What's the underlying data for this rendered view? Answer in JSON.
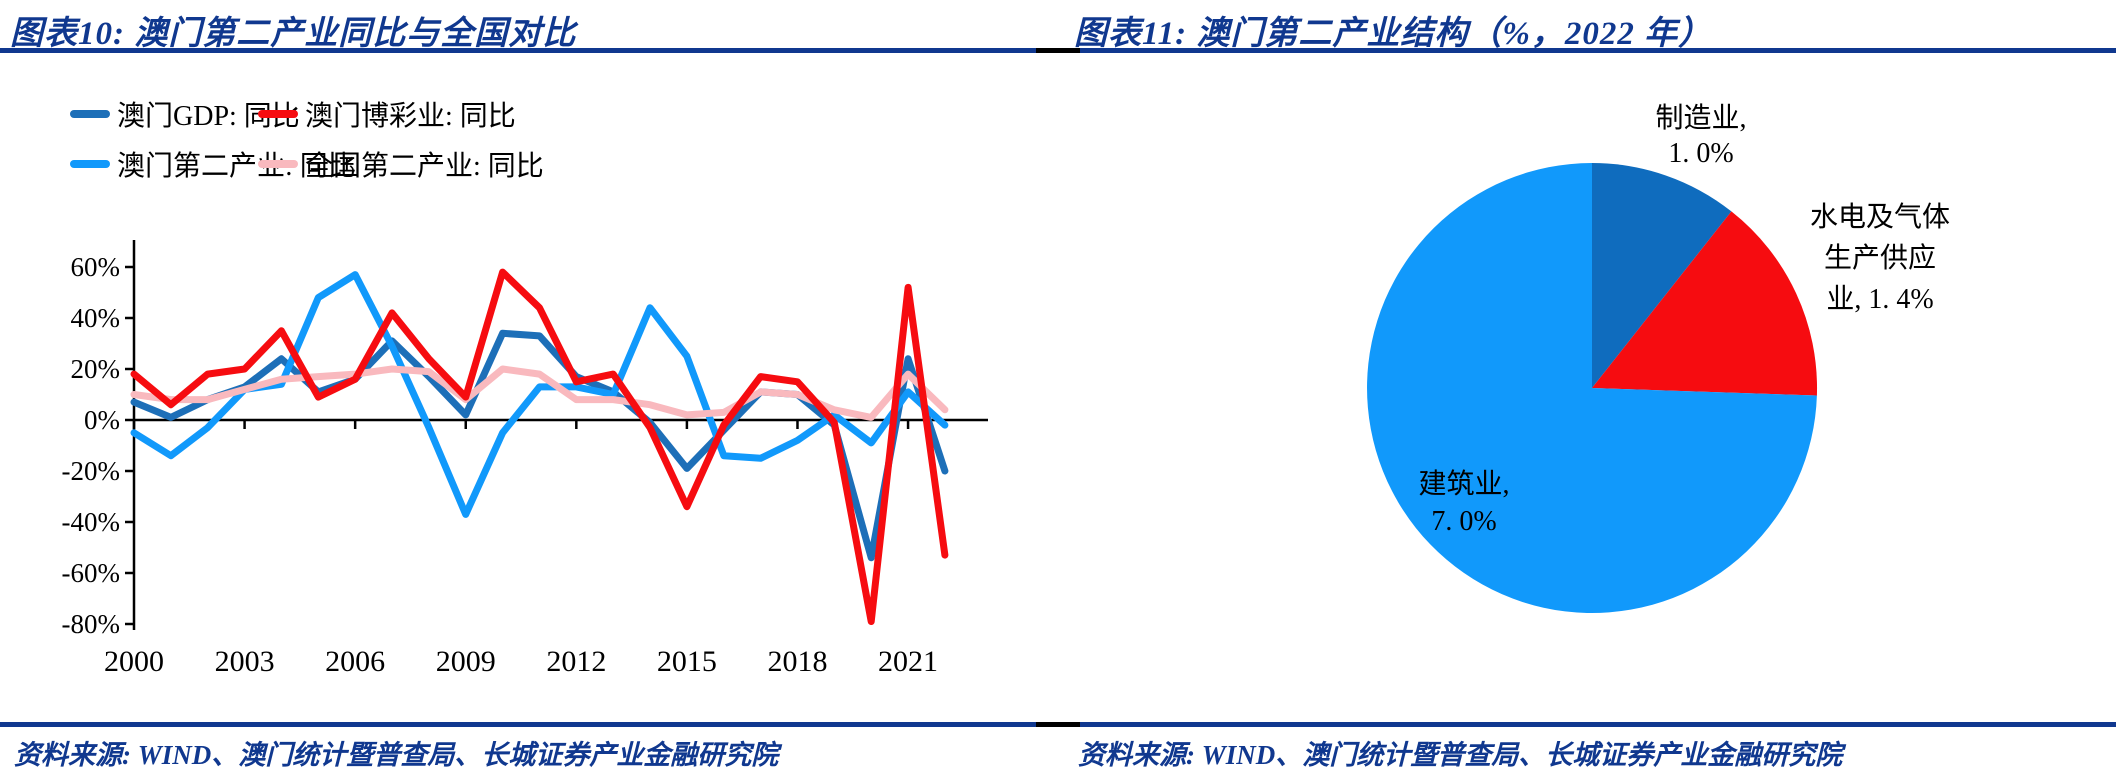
{
  "colors": {
    "accent_blue": "#10388f",
    "axis_black": "#000000",
    "macau_gdp_blue": "#1d6fb8",
    "gaming_red": "#f60c10",
    "macau_secondary_lightblue": "#1199fb",
    "national_secondary_pink": "#f9b9be",
    "pie_dark_blue": "#0f6cbe"
  },
  "left_panel": {
    "title": "图表10:  澳门第二产业同比与全国对比",
    "source": "资料来源: WIND、澳门统计暨普查局、长城证券产业金融研究院"
  },
  "right_panel": {
    "title": "图表11:  澳门第二产业结构（%，2022 年）",
    "source": "资料来源: WIND、澳门统计暨普查局、长城证券产业金融研究院"
  },
  "chart_data": [
    {
      "type": "line",
      "title": "澳门第二产业同比与全国对比",
      "xlabel": "",
      "ylabel": "",
      "grid": false,
      "legend_position": "top",
      "ylim": [
        -88,
        71
      ],
      "y_axis_ticks": [
        60,
        40,
        20,
        0,
        -20,
        -40,
        -60,
        -80
      ],
      "y_tick_suffix": "%",
      "x_tick_years": [
        2000,
        2003,
        2006,
        2009,
        2012,
        2015,
        2018,
        2021
      ],
      "x": [
        2000,
        2001,
        2002,
        2003,
        2004,
        2005,
        2006,
        2007,
        2008,
        2009,
        2010,
        2011,
        2012,
        2013,
        2014,
        2015,
        2016,
        2017,
        2018,
        2019,
        2020,
        2021,
        2022
      ],
      "draw_order": [
        0,
        2,
        3,
        1
      ],
      "series": [
        {
          "name": "澳门GDP: 同比",
          "color": "#1d6fb8",
          "values": [
            7,
            1,
            8,
            13,
            24,
            11,
            16,
            31,
            17,
            2,
            34,
            33,
            17,
            11,
            -1,
            -19,
            -4,
            11,
            10,
            -2,
            -54,
            24,
            -20
          ]
        },
        {
          "name": "澳门博彩业: 同比",
          "color": "#f60c10",
          "values": [
            18,
            6,
            18,
            20,
            35,
            9,
            16,
            42,
            24,
            9,
            58,
            44,
            15,
            18,
            -3,
            -34,
            -2,
            17,
            15,
            -1,
            -79,
            52,
            -53
          ]
        },
        {
          "name": "澳门第二产业: 同比",
          "color": "#1199fb",
          "values": [
            -5,
            -14,
            -3,
            12,
            14,
            48,
            57,
            29,
            -3,
            -37,
            -5,
            13,
            13,
            10,
            44,
            25,
            -14,
            -15,
            -8,
            2,
            -9,
            11,
            -2
          ]
        },
        {
          "name": "全国第二产业: 同比",
          "color": "#f9b9be",
          "values": [
            10,
            8,
            8,
            12,
            16,
            17,
            18,
            20,
            19,
            8,
            20,
            18,
            8,
            8,
            6,
            2,
            3,
            11,
            10,
            4,
            1,
            18,
            4
          ]
        }
      ]
    },
    {
      "type": "pie",
      "title": "澳门第二产业结构（%，2022年）",
      "unit": "%",
      "year": "2022",
      "slices": [
        {
          "name": "制造业",
          "value": 1.0,
          "color": "#0f6cbe",
          "label_lines": [
            "制造业,",
            "1. 0%"
          ]
        },
        {
          "name": "水电及气体生产供应业",
          "value": 1.4,
          "color": "#f60c10",
          "label_lines": [
            "水电及气体",
            "生产供应",
            "业, 1. 4%"
          ]
        },
        {
          "name": "建筑业",
          "value": 7.0,
          "color": "#1199fb",
          "label_lines": [
            "建筑业,",
            "7. 0%"
          ]
        }
      ]
    }
  ]
}
